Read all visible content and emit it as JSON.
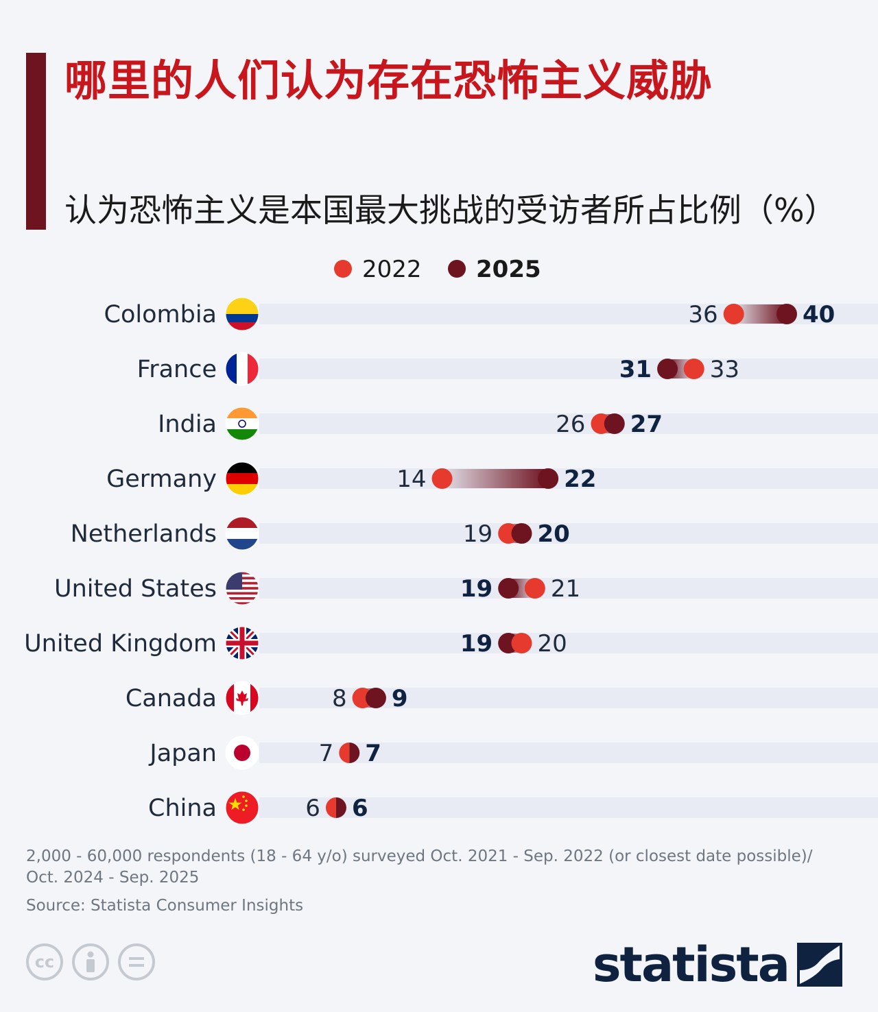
{
  "title": "哪里的人们认为存在恐怖主义威胁",
  "subtitle": "认为恐怖主义是本国最大挑战的受访者所占比例（%）",
  "chart_data": {
    "type": "dumbbell",
    "x_range": [
      0,
      40
    ],
    "legend": [
      {
        "label": "2022",
        "color": "#e63a2e"
      },
      {
        "label": "2025",
        "color": "#6e1320"
      }
    ],
    "categories": [
      "Colombia",
      "France",
      "India",
      "Germany",
      "Netherlands",
      "United States",
      "United Kingdom",
      "Canada",
      "Japan",
      "China"
    ],
    "series": [
      {
        "name": "2022",
        "values": [
          36,
          33,
          26,
          14,
          19,
          21,
          20,
          8,
          7,
          6
        ]
      },
      {
        "name": "2025",
        "values": [
          40,
          31,
          27,
          22,
          20,
          19,
          19,
          9,
          7,
          6
        ]
      }
    ],
    "flags": [
      "colombia-flag",
      "france-flag",
      "india-flag",
      "germany-flag",
      "netherlands-flag",
      "united-states-flag",
      "united-kingdom-flag",
      "canada-flag",
      "japan-flag",
      "china-flag"
    ]
  },
  "footer": {
    "note": "2,000 - 60,000 respondents (18 - 64 y/o) surveyed Oct. 2021 - Sep. 2022 (or closest date possible)/ Oct. 2024 - Sep. 2025",
    "source": "Source: Statista Consumer Insights",
    "license_icons": [
      "cc-icon",
      "attribution-icon",
      "no-derivatives-icon"
    ],
    "logo": "statista"
  }
}
